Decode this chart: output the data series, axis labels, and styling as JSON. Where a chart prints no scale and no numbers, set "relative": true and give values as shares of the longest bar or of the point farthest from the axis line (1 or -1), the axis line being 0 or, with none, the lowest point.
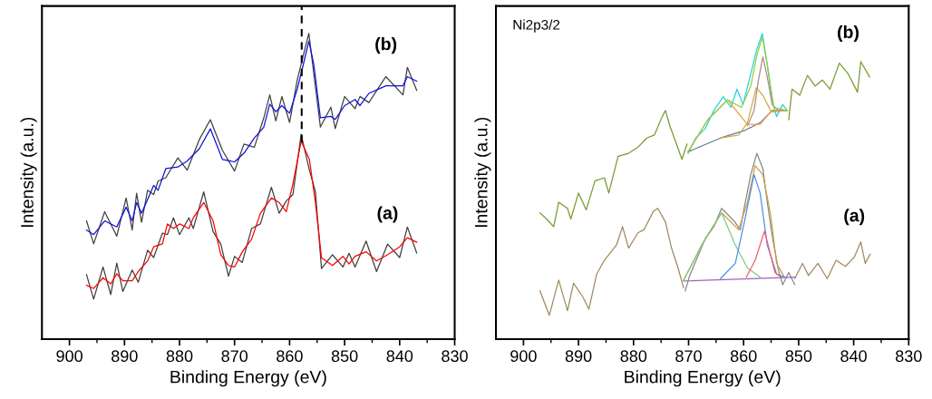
{
  "chart_data": [
    {
      "type": "line",
      "relative": true,
      "xlabel": "Binding Energy (eV)",
      "ylabel": "Intensity (a.u.)",
      "tick_labels": "x",
      "xlim": [
        905,
        830
      ],
      "xticks": [
        900,
        {
          "value": 895,
          "label": null
        },
        890,
        {
          "value": 885,
          "label": null
        },
        880,
        {
          "value": 875,
          "label": null
        },
        870,
        {
          "value": 865,
          "label": null
        },
        860,
        {
          "value": 855,
          "label": null
        },
        850,
        {
          "value": 845,
          "label": null
        },
        840,
        {
          "value": 835,
          "label": null
        },
        830
      ],
      "ref_lines": [
        {
          "axis": "x",
          "value": 857.8,
          "color": "#000000",
          "line_style": "dashed"
        }
      ],
      "series": [
        {
          "color": "#404040",
          "x": [
            896.9,
            895.6,
            893.6,
            891.4,
            889.7,
            888.6,
            887.8,
            886.9,
            885.8,
            884.7,
            883.9,
            882.5,
            880.3,
            878.6,
            876.4,
            874.4,
            872.2,
            870,
            868.3,
            866.4,
            864.7,
            863.6,
            862.5,
            861.4,
            860,
            858.6,
            857.5,
            856.5,
            855.6,
            854.4,
            852.5,
            851.7,
            850,
            848.1,
            847.2,
            845.6,
            842.5,
            839.4,
            838.6,
            836.9
          ],
          "values": [
            0.387,
            0.312,
            0.417,
            0.337,
            0.462,
            0.357,
            0.477,
            0.382,
            0.487,
            0.473,
            0.517,
            0.528,
            0.593,
            0.553,
            0.653,
            0.718,
            0.618,
            0.55,
            0.638,
            0.628,
            0.723,
            0.799,
            0.714,
            0.794,
            0.709,
            0.849,
            0.929,
            1.0,
            0.869,
            0.694,
            0.759,
            0.689,
            0.794,
            0.754,
            0.794,
            0.774,
            0.859,
            0.799,
            0.889,
            0.814
          ]
        },
        {
          "name": "(b)",
          "color": "#1010e0",
          "x": [
            896.9,
            895.6,
            893.6,
            891.4,
            889.7,
            888.6,
            887.8,
            886.9,
            885.8,
            884.7,
            883.9,
            882.5,
            880.3,
            878.6,
            876.4,
            874.4,
            872.2,
            870,
            868.3,
            866.4,
            864.7,
            863.6,
            862.5,
            861.4,
            860,
            858.6,
            857.5,
            856.5,
            855.6,
            854.4,
            852.5,
            851.7,
            850,
            848.1,
            847.2,
            845.6,
            842.5,
            839.4,
            838.6,
            836.9
          ],
          "values": [
            0.357,
            0.342,
            0.387,
            0.367,
            0.432,
            0.387,
            0.447,
            0.412,
            0.457,
            0.503,
            0.487,
            0.558,
            0.563,
            0.583,
            0.623,
            0.688,
            0.588,
            0.58,
            0.608,
            0.658,
            0.693,
            0.769,
            0.744,
            0.764,
            0.739,
            0.819,
            0.899,
            0.975,
            0.899,
            0.724,
            0.729,
            0.719,
            0.764,
            0.784,
            0.764,
            0.804,
            0.829,
            0.829,
            0.859,
            0.844
          ]
        },
        {
          "color": "#404040",
          "x": [
            896.9,
            895.6,
            893.9,
            892.5,
            891.4,
            890.3,
            888.6,
            887.5,
            885.8,
            884.7,
            883.1,
            882.2,
            881.1,
            880,
            878.3,
            877.5,
            875.6,
            873.9,
            872.5,
            871.1,
            870,
            868.6,
            866.9,
            865.3,
            863.3,
            861.9,
            860.6,
            859.4,
            857.9,
            856.4,
            855.3,
            854.2,
            852.2,
            850.3,
            849.2,
            848.1,
            846.1,
            844.2,
            842.2,
            840,
            838.6,
            836.9
          ],
          "values": [
            0.211,
            0.131,
            0.236,
            0.146,
            0.249,
            0.156,
            0.226,
            0.186,
            0.291,
            0.267,
            0.347,
            0.342,
            0.397,
            0.342,
            0.397,
            0.362,
            0.482,
            0.352,
            0.311,
            0.206,
            0.271,
            0.251,
            0.362,
            0.377,
            0.497,
            0.412,
            0.452,
            0.473,
            0.67,
            0.553,
            0.482,
            0.231,
            0.276,
            0.236,
            0.281,
            0.236,
            0.321,
            0.221,
            0.311,
            0.267,
            0.367,
            0.282
          ]
        },
        {
          "name": "(a)",
          "color": "#ff0000",
          "x": [
            896.9,
            895.6,
            893.9,
            892.5,
            891.4,
            890.3,
            888.6,
            887.5,
            885.8,
            884.7,
            883.1,
            882.2,
            881.1,
            880,
            878.3,
            877.5,
            875.6,
            873.9,
            872.5,
            871.1,
            870,
            868.6,
            866.9,
            865.3,
            863.3,
            861.9,
            860.6,
            859.4,
            857.9,
            856.4,
            855.3,
            854.2,
            852.2,
            850.3,
            849.2,
            848.1,
            846.1,
            844.2,
            842.2,
            840,
            838.6,
            836.9
          ],
          "values": [
            0.176,
            0.166,
            0.201,
            0.181,
            0.214,
            0.191,
            0.191,
            0.221,
            0.256,
            0.302,
            0.312,
            0.377,
            0.362,
            0.377,
            0.362,
            0.397,
            0.447,
            0.387,
            0.276,
            0.241,
            0.236,
            0.286,
            0.327,
            0.412,
            0.462,
            0.447,
            0.417,
            0.508,
            0.648,
            0.588,
            0.447,
            0.266,
            0.241,
            0.271,
            0.246,
            0.271,
            0.286,
            0.256,
            0.276,
            0.302,
            0.332,
            0.317
          ]
        }
      ]
    },
    {
      "type": "line",
      "relative": true,
      "xlabel": "Binding Energy (eV)",
      "ylabel": "Intensity (a.u.)",
      "tick_labels": "x",
      "xlim": [
        905,
        830
      ],
      "xticks": [
        900,
        {
          "value": 895,
          "label": null
        },
        890,
        {
          "value": 885,
          "label": null
        },
        880,
        {
          "value": 875,
          "label": null
        },
        870,
        {
          "value": 865,
          "label": null
        },
        860,
        {
          "value": 855,
          "label": null
        },
        850,
        {
          "value": 845,
          "label": null
        },
        840,
        {
          "value": 835,
          "label": null
        },
        830
      ],
      "annotations": [
        "Ni2p3/2"
      ],
      "series": [
        {
          "name": "(b)",
          "color": "#7a9a2e",
          "x": [
            897,
            895.8,
            894.5,
            893.6,
            892,
            891.4,
            890,
            888.6,
            887,
            885.3,
            884.5,
            882.8,
            880.9,
            879.2,
            877.6,
            876.2,
            874.8,
            874.2,
            873.4,
            872,
            871.2,
            870.3,
            861,
            851.8,
            851.2,
            849.8,
            848.4,
            847,
            845.7,
            844.3,
            842.6,
            841,
            839.3,
            838.7,
            837.1
          ],
          "values": [
            0.413,
            0.393,
            0.368,
            0.448,
            0.428,
            0.393,
            0.478,
            0.423,
            0.518,
            0.528,
            0.478,
            0.598,
            0.608,
            0.628,
            0.658,
            0.668,
            0.728,
            0.748,
            0.698,
            0.628,
            0.588,
            0.638,
            null,
            0.718,
            0.818,
            0.798,
            0.863,
            0.828,
            0.848,
            0.818,
            0.903,
            0.868,
            0.808,
            0.908,
            0.858
          ]
        },
        {
          "color": "#22d3e0",
          "x": [
            870.1,
            868.7,
            867,
            865.4,
            863.7,
            862.3,
            861.2,
            860.1,
            858.7,
            857.6,
            856.6,
            855.7,
            854.8,
            854,
            852.9,
            852.1
          ],
          "values": [
            0.608,
            0.658,
            0.688,
            0.748,
            0.793,
            0.758,
            0.818,
            0.768,
            0.868,
            0.948,
            1.0,
            0.898,
            0.778,
            0.728,
            0.768,
            0.748
          ]
        },
        {
          "color": "#6b7a9c",
          "x": [
            870.1,
            864.2,
            859.8,
            857,
            854.8,
            852.1
          ],
          "values": [
            0.613,
            0.658,
            0.683,
            0.708,
            0.748,
            0.748
          ]
        },
        {
          "color": "#f0a050",
          "x": [
            870.1,
            866.5,
            862.9,
            860.9,
            859.3,
            857,
            855.1,
            852.1
          ],
          "values": [
            0.613,
            0.718,
            0.783,
            0.738,
            0.703,
            0.703,
            0.743,
            0.748
          ]
        },
        {
          "color": "#c8b040",
          "x": [
            864.2,
            860.9,
            859.3,
            857.7,
            856.5,
            855.1,
            853.7
          ],
          "values": [
            0.658,
            0.668,
            0.708,
            0.823,
            0.798,
            0.748,
            0.748
          ]
        },
        {
          "color": "#b08a80",
          "x": [
            859.3,
            858.1,
            857.3,
            856.5,
            855.7,
            854.8,
            853.7
          ],
          "values": [
            0.698,
            0.748,
            0.848,
            0.923,
            0.858,
            0.768,
            0.748
          ]
        },
        {
          "color": "#90d040",
          "x": [
            870.1,
            866.5,
            862.9,
            860.4,
            858.7,
            857.6,
            856.6,
            855.7,
            854.5,
            852.1
          ],
          "values": [
            0.613,
            0.718,
            0.783,
            0.758,
            0.828,
            0.928,
            0.988,
            0.898,
            0.758,
            0.748
          ]
        },
        {
          "name": "(a)",
          "color": "#a08a60",
          "x": [
            897,
            895.3,
            893.6,
            892,
            890.9,
            889.2,
            888.1,
            886.7,
            885.3,
            883.1,
            882,
            880.9,
            879.2,
            878.1,
            876.4,
            875.6,
            874.2,
            873.1,
            872,
            870.9,
            861,
            850.7,
            849.3,
            848.2,
            846.5,
            844.8,
            843.2,
            841.5,
            839.9,
            838.7,
            837.9,
            837
          ],
          "values": [
            0.158,
            0.078,
            0.193,
            0.093,
            0.183,
            0.138,
            0.098,
            0.213,
            0.258,
            0.308,
            0.368,
            0.298,
            0.348,
            0.358,
            0.418,
            0.428,
            0.383,
            0.298,
            0.238,
            0.168,
            null,
            0.198,
            0.248,
            0.208,
            0.248,
            0.198,
            0.258,
            0.238,
            0.268,
            0.318,
            0.248,
            0.278
          ]
        },
        {
          "color": "#888888",
          "x": [
            870.6,
            869.8,
            868.4,
            867,
            865.4,
            864,
            862.9,
            861.8,
            860.6,
            859.8,
            858.7,
            857.6,
            856.5,
            855.7,
            854.8,
            853.7,
            852.9,
            851.8,
            850.7
          ],
          "values": [
            0.158,
            0.208,
            0.268,
            0.328,
            0.368,
            0.428,
            0.408,
            0.388,
            0.358,
            0.438,
            0.538,
            0.608,
            0.558,
            0.448,
            0.338,
            0.228,
            0.178,
            0.218,
            0.178
          ]
        },
        {
          "color": "#a060c0",
          "x": [
            870.9,
            850.7
          ],
          "values": [
            0.19,
            0.203
          ]
        },
        {
          "color": "#c8a040",
          "x": [
            870.9,
            867.6,
            864,
            860.9,
            859.3,
            857.9,
            856.5,
            855.1,
            854,
            852.6
          ],
          "values": [
            0.193,
            0.308,
            0.413,
            0.358,
            0.448,
            0.568,
            0.538,
            0.408,
            0.248,
            0.203
          ]
        },
        {
          "color": "#80c880",
          "x": [
            870.9,
            867,
            864,
            861.5,
            859.3,
            857
          ],
          "values": [
            0.193,
            0.328,
            0.413,
            0.308,
            0.233,
            0.203
          ]
        },
        {
          "color": "#5090e0",
          "x": [
            864.2,
            861.5,
            859.8,
            858.1,
            857,
            855.7,
            854,
            852.6
          ],
          "values": [
            0.198,
            0.248,
            0.388,
            0.538,
            0.478,
            0.308,
            0.213,
            0.203
          ]
        },
        {
          "color": "#f06070",
          "x": [
            859.5,
            857.9,
            856.2,
            855.4,
            854.3,
            853.2
          ],
          "values": [
            0.203,
            0.258,
            0.353,
            0.298,
            0.218,
            0.203
          ]
        }
      ]
    }
  ]
}
